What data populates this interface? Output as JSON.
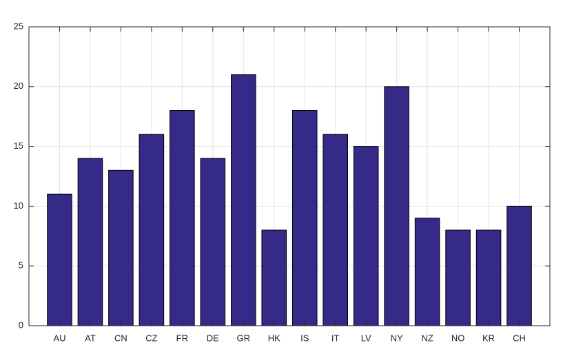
{
  "chart_data": {
    "type": "bar",
    "categories": [
      "AU",
      "AT",
      "CN",
      "CZ",
      "FR",
      "DE",
      "GR",
      "HK",
      "IS",
      "IT",
      "LV",
      "NY",
      "NZ",
      "NO",
      "KR",
      "CH"
    ],
    "values": [
      11,
      14,
      13,
      16,
      18,
      14,
      21,
      8,
      18,
      16,
      15,
      20,
      9,
      8,
      8,
      10
    ],
    "color": "#352a87",
    "ylim": [
      0,
      25
    ],
    "yticks": [
      0,
      5,
      10,
      15,
      20,
      25
    ],
    "grid": true
  }
}
